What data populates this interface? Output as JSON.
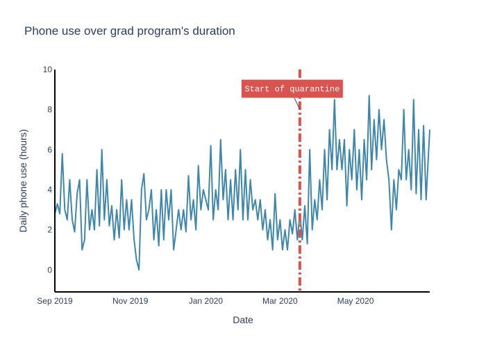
{
  "chart_data": {
    "type": "line",
    "title": "Phone use over grad program's duration",
    "xlabel": "Date",
    "ylabel": "Daily phone use (hours)",
    "xlim": [
      "2019-09-01",
      "2020-06-30"
    ],
    "ylim": [
      -1.1,
      10
    ],
    "x_ticks": [
      "2019-09-01",
      "2019-11-01",
      "2020-01-01",
      "2020-03-01",
      "2020-05-01"
    ],
    "x_tick_labels": [
      "Sep 2019",
      "Nov 2019",
      "Jan 2020",
      "Mar 2020",
      "May 2020"
    ],
    "y_ticks": [
      0,
      2,
      4,
      6,
      8,
      10
    ],
    "y_tick_labels": [
      "0",
      "2",
      "4",
      "6",
      "8",
      "10"
    ],
    "grid": false,
    "series": [
      {
        "color": "#3f86ab",
        "points": [
          [
            "2019-09-01",
            2.8
          ],
          [
            "2019-09-03",
            3.3
          ],
          [
            "2019-09-05",
            2.8
          ],
          [
            "2019-09-07",
            5.8
          ],
          [
            "2019-09-09",
            3.0
          ],
          [
            "2019-09-11",
            2.5
          ],
          [
            "2019-09-13",
            4.5
          ],
          [
            "2019-09-15",
            2.5
          ],
          [
            "2019-09-17",
            1.9
          ],
          [
            "2019-09-19",
            3.8
          ],
          [
            "2019-09-21",
            4.5
          ],
          [
            "2019-09-23",
            1.0
          ],
          [
            "2019-09-25",
            1.5
          ],
          [
            "2019-09-27",
            4.5
          ],
          [
            "2019-09-29",
            2.0
          ],
          [
            "2019-10-01",
            3.0
          ],
          [
            "2019-10-03",
            2.0
          ],
          [
            "2019-10-05",
            5.0
          ],
          [
            "2019-10-07",
            2.2
          ],
          [
            "2019-10-09",
            6.0
          ],
          [
            "2019-10-11",
            2.5
          ],
          [
            "2019-10-13",
            4.5
          ],
          [
            "2019-10-15",
            2.2
          ],
          [
            "2019-10-17",
            3.2
          ],
          [
            "2019-10-19",
            1.5
          ],
          [
            "2019-10-21",
            3.0
          ],
          [
            "2019-10-23",
            1.6
          ],
          [
            "2019-10-25",
            4.5
          ],
          [
            "2019-10-27",
            2.0
          ],
          [
            "2019-10-29",
            3.5
          ],
          [
            "2019-10-31",
            2.0
          ],
          [
            "2019-11-02",
            3.5
          ],
          [
            "2019-11-04",
            1.5
          ],
          [
            "2019-11-06",
            0.5
          ],
          [
            "2019-11-08",
            0.0
          ],
          [
            "2019-11-10",
            4.0
          ],
          [
            "2019-11-12",
            4.8
          ],
          [
            "2019-11-14",
            2.5
          ],
          [
            "2019-11-16",
            3.0
          ],
          [
            "2019-11-18",
            4.0
          ],
          [
            "2019-11-20",
            1.5
          ],
          [
            "2019-11-22",
            3.0
          ],
          [
            "2019-11-24",
            1.2
          ],
          [
            "2019-11-26",
            4.0
          ],
          [
            "2019-11-28",
            1.5
          ],
          [
            "2019-11-30",
            4.0
          ],
          [
            "2019-12-02",
            2.5
          ],
          [
            "2019-12-04",
            4.0
          ],
          [
            "2019-12-06",
            1.0
          ],
          [
            "2019-12-08",
            2.0
          ],
          [
            "2019-12-10",
            3.0
          ],
          [
            "2019-12-12",
            2.0
          ],
          [
            "2019-12-14",
            3.0
          ],
          [
            "2019-12-16",
            1.9
          ],
          [
            "2019-12-18",
            4.7
          ],
          [
            "2019-12-20",
            2.5
          ],
          [
            "2019-12-22",
            3.5
          ],
          [
            "2019-12-24",
            2.0
          ],
          [
            "2019-12-26",
            5.2
          ],
          [
            "2019-12-28",
            3.0
          ],
          [
            "2019-12-30",
            4.0
          ],
          [
            "2020-01-01",
            3.5
          ],
          [
            "2020-01-03",
            3.0
          ],
          [
            "2020-01-05",
            6.2
          ],
          [
            "2020-01-07",
            2.5
          ],
          [
            "2020-01-09",
            4.0
          ],
          [
            "2020-01-11",
            3.0
          ],
          [
            "2020-01-13",
            6.5
          ],
          [
            "2020-01-15",
            3.5
          ],
          [
            "2020-01-17",
            5.0
          ],
          [
            "2020-01-19",
            2.5
          ],
          [
            "2020-01-21",
            4.5
          ],
          [
            "2020-01-23",
            2.5
          ],
          [
            "2020-01-25",
            5.0
          ],
          [
            "2020-01-27",
            3.0
          ],
          [
            "2020-01-29",
            6.0
          ],
          [
            "2020-01-31",
            2.5
          ],
          [
            "2020-02-02",
            5.0
          ],
          [
            "2020-02-04",
            2.5
          ],
          [
            "2020-02-06",
            4.5
          ],
          [
            "2020-02-08",
            3.0
          ],
          [
            "2020-02-10",
            3.5
          ],
          [
            "2020-02-12",
            2.5
          ],
          [
            "2020-02-14",
            3.5
          ],
          [
            "2020-02-16",
            2.0
          ],
          [
            "2020-02-18",
            3.0
          ],
          [
            "2020-02-20",
            1.5
          ],
          [
            "2020-02-22",
            2.5
          ],
          [
            "2020-02-24",
            1.0
          ],
          [
            "2020-02-26",
            3.8
          ],
          [
            "2020-02-28",
            1.5
          ],
          [
            "2020-03-01",
            2.5
          ],
          [
            "2020-03-03",
            1.0
          ],
          [
            "2020-03-05",
            2.0
          ],
          [
            "2020-03-07",
            1.0
          ],
          [
            "2020-03-09",
            2.5
          ],
          [
            "2020-03-11",
            1.8
          ],
          [
            "2020-03-13",
            3.0
          ],
          [
            "2020-03-15",
            1.5
          ],
          [
            "2020-03-17",
            2.8
          ],
          [
            "2020-03-19",
            1.5
          ],
          [
            "2020-03-21",
            3.2
          ],
          [
            "2020-03-23",
            1.3
          ],
          [
            "2020-03-25",
            6.0
          ],
          [
            "2020-03-27",
            2.0
          ],
          [
            "2020-03-29",
            3.5
          ],
          [
            "2020-03-31",
            2.5
          ],
          [
            "2020-04-02",
            4.5
          ],
          [
            "2020-04-04",
            3.0
          ],
          [
            "2020-04-06",
            6.0
          ],
          [
            "2020-04-08",
            3.5
          ],
          [
            "2020-04-10",
            7.0
          ],
          [
            "2020-04-12",
            5.0
          ],
          [
            "2020-04-14",
            8.5
          ],
          [
            "2020-04-16",
            5.0
          ],
          [
            "2020-04-18",
            6.5
          ],
          [
            "2020-04-20",
            5.0
          ],
          [
            "2020-04-22",
            6.5
          ],
          [
            "2020-04-24",
            3.2
          ],
          [
            "2020-04-26",
            6.0
          ],
          [
            "2020-04-28",
            4.5
          ],
          [
            "2020-04-30",
            7.0
          ],
          [
            "2020-05-02",
            4.0
          ],
          [
            "2020-05-04",
            6.0
          ],
          [
            "2020-05-06",
            3.5
          ],
          [
            "2020-05-08",
            6.5
          ],
          [
            "2020-05-10",
            4.5
          ],
          [
            "2020-05-12",
            8.7
          ],
          [
            "2020-05-14",
            5.0
          ],
          [
            "2020-05-16",
            7.5
          ],
          [
            "2020-05-18",
            5.5
          ],
          [
            "2020-05-20",
            8.0
          ],
          [
            "2020-05-22",
            6.0
          ],
          [
            "2020-05-24",
            7.5
          ],
          [
            "2020-05-26",
            5.5
          ],
          [
            "2020-05-28",
            4.5
          ],
          [
            "2020-05-30",
            2.0
          ],
          [
            "2020-06-01",
            4.5
          ],
          [
            "2020-06-03",
            3.0
          ],
          [
            "2020-06-05",
            5.0
          ],
          [
            "2020-06-07",
            4.5
          ],
          [
            "2020-06-09",
            8.0
          ],
          [
            "2020-06-11",
            4.5
          ],
          [
            "2020-06-13",
            6.0
          ],
          [
            "2020-06-15",
            4.0
          ],
          [
            "2020-06-17",
            8.5
          ],
          [
            "2020-06-19",
            3.8
          ],
          [
            "2020-06-21",
            7.0
          ],
          [
            "2020-06-23",
            3.5
          ],
          [
            "2020-06-25",
            7.2
          ],
          [
            "2020-06-27",
            3.5
          ],
          [
            "2020-06-30",
            7.0
          ]
        ]
      }
    ],
    "annotation": {
      "text": "Start of quarantine",
      "x": "2020-03-17",
      "y": 8,
      "bg_color": "#d9534f",
      "text_color": "#ffffff"
    },
    "vline": {
      "x": "2020-03-17",
      "color": "#d9534f",
      "style": "dash-dot"
    }
  }
}
